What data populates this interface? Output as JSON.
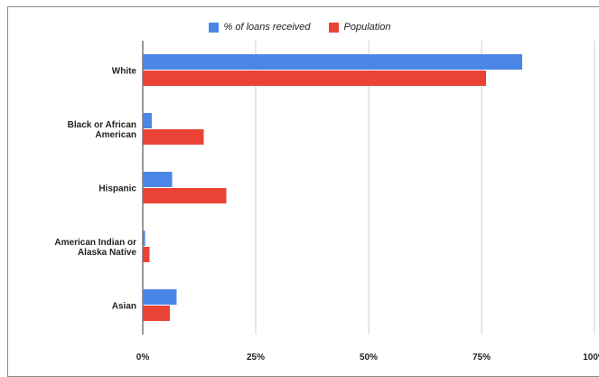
{
  "chart_data": {
    "type": "bar",
    "orientation": "horizontal",
    "categories": [
      [
        "White"
      ],
      [
        "Black or African",
        "American"
      ],
      [
        "Hispanic"
      ],
      [
        "American Indian or",
        "Alaska Native"
      ],
      [
        "Asian"
      ]
    ],
    "series": [
      {
        "name": "% of loans received",
        "color": "#4a86e8",
        "values": [
          84,
          2,
          6.5,
          0.5,
          7.5
        ]
      },
      {
        "name": "Population",
        "color": "#ea4335",
        "values": [
          76,
          13.5,
          18.5,
          1.5,
          6
        ]
      }
    ],
    "xlim": [
      0,
      100
    ],
    "xticks": [
      "0%",
      "25%",
      "50%",
      "75%",
      "100%"
    ],
    "grid": true,
    "legend_position": "top-center"
  }
}
